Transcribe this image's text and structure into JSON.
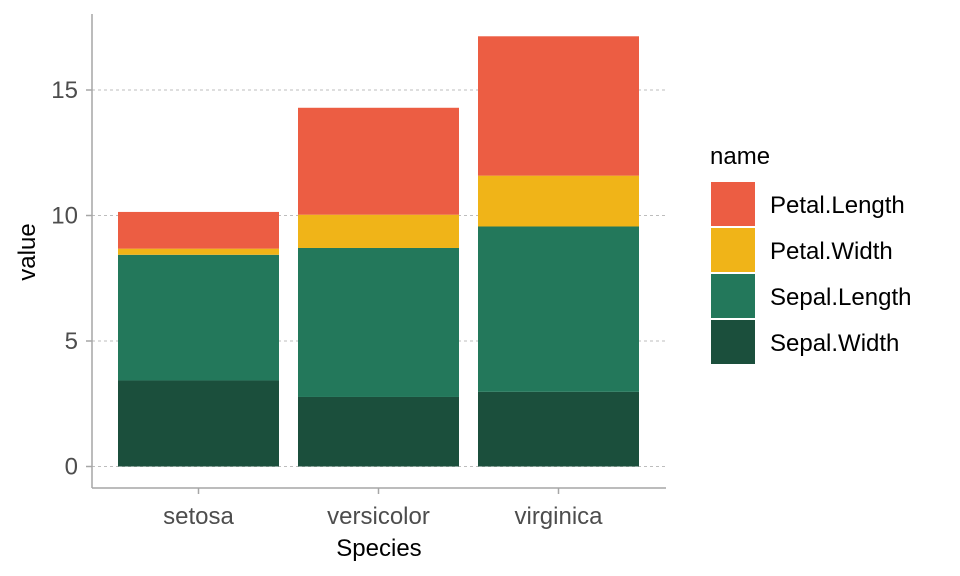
{
  "chart_data": {
    "type": "bar",
    "stacked": true,
    "categories": [
      "setosa",
      "versicolor",
      "virginica"
    ],
    "series": [
      {
        "name": "Sepal.Width",
        "color": "#1b4f3c",
        "values": [
          3.428,
          2.77,
          2.974
        ]
      },
      {
        "name": "Sepal.Length",
        "color": "#23785b",
        "values": [
          5.006,
          5.936,
          6.588
        ]
      },
      {
        "name": "Petal.Width",
        "color": "#f0b418",
        "values": [
          0.246,
          1.326,
          2.026
        ]
      },
      {
        "name": "Petal.Length",
        "color": "#ec5d43",
        "values": [
          1.462,
          4.26,
          5.552
        ]
      }
    ],
    "xlabel": "Species",
    "ylabel": "value",
    "ylim": [
      0,
      17.2
    ],
    "yticks": [
      0,
      5,
      10,
      15
    ],
    "grid": "horizontal-dashed",
    "legend": {
      "title": "name",
      "position": "right",
      "items": [
        "Petal.Length",
        "Petal.Width",
        "Sepal.Length",
        "Sepal.Width"
      ]
    }
  }
}
